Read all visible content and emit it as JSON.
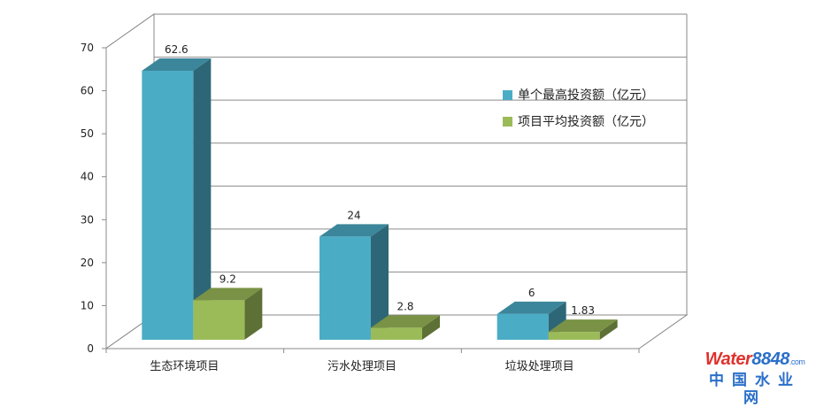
{
  "chart_data": {
    "type": "bar",
    "categories": [
      "生态环境项目",
      "污水处理项目",
      "垃圾处理项目"
    ],
    "series": [
      {
        "name": "单个最高投资额（亿元）",
        "values": [
          62.6,
          24,
          6
        ],
        "data_labels": [
          "62.6",
          "24",
          "6"
        ],
        "color": "#4bacc6"
      },
      {
        "name": "项目平均投资额（亿元）",
        "values": [
          9.2,
          2.8,
          1.83
        ],
        "data_labels": [
          "9.2",
          "2.8",
          "1.83"
        ],
        "color": "#9bbb59"
      }
    ],
    "ylim": [
      0,
      70
    ],
    "yticks": [
      "0",
      "10",
      "20",
      "30",
      "40",
      "50",
      "60",
      "70"
    ],
    "grid": true,
    "style": "3d-column",
    "legend_position": "right"
  },
  "watermark": {
    "brand_a": "Water",
    "brand_b": "8848",
    "suffix": ".com",
    "cn": "中国水业网"
  }
}
